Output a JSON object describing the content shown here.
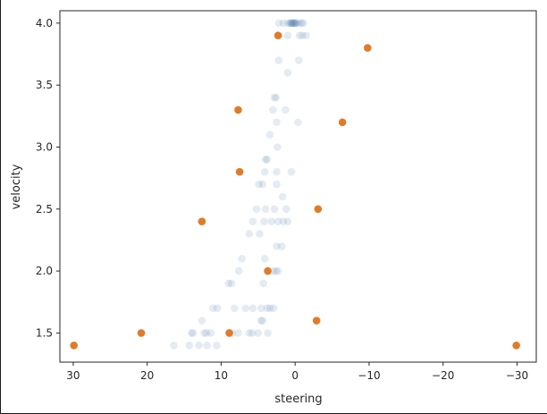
{
  "chart_data": {
    "type": "scatter",
    "xlabel": "steering",
    "ylabel": "velocity",
    "xlim": [
      31.8,
      -32.6
    ],
    "ylim": [
      1.265,
      4.1
    ],
    "x_axis_inverted": true,
    "x_ticks": [
      30,
      20,
      10,
      0,
      -10,
      -20,
      -30
    ],
    "x_tick_labels": [
      "30",
      "20",
      "10",
      "0",
      "−10",
      "−20",
      "−30"
    ],
    "y_ticks": [
      1.5,
      2.0,
      2.5,
      3.0,
      3.5,
      4.0
    ],
    "y_tick_labels": [
      "1.5",
      "2.0",
      "2.5",
      "3.0",
      "3.5",
      "4.0"
    ],
    "grid": false,
    "legend": "none",
    "series": [
      {
        "color": "#4c78b0",
        "alpha": 0.15,
        "points": [
          [
            2.2,
            4.0
          ],
          [
            1.6,
            4.0
          ],
          [
            1.0,
            4.0
          ],
          [
            0.7,
            4.0
          ],
          [
            0.5,
            4.0
          ],
          [
            0.3,
            4.0
          ],
          [
            0.1,
            4.0
          ],
          [
            -0.2,
            4.0
          ],
          [
            -0.6,
            4.0
          ],
          [
            -0.9,
            4.0
          ],
          [
            -1.1,
            4.0
          ],
          [
            0.4,
            4.0
          ],
          [
            0.2,
            4.0
          ],
          [
            -0.1,
            4.0
          ],
          [
            0.6,
            4.0
          ],
          [
            0.0,
            4.0
          ],
          [
            -0.6,
            3.9
          ],
          [
            -1.0,
            3.9
          ],
          [
            -1.5,
            3.9
          ],
          [
            1.0,
            3.9
          ],
          [
            2.2,
            3.7
          ],
          [
            -0.5,
            3.7
          ],
          [
            1.0,
            3.6
          ],
          [
            2.8,
            3.4
          ],
          [
            2.6,
            3.4
          ],
          [
            3.0,
            3.3
          ],
          [
            1.3,
            3.3
          ],
          [
            2.5,
            3.2
          ],
          [
            -0.4,
            3.2
          ],
          [
            3.4,
            3.1
          ],
          [
            2.4,
            3.0
          ],
          [
            4.0,
            2.9
          ],
          [
            3.8,
            2.9
          ],
          [
            2.5,
            2.8
          ],
          [
            0.5,
            2.8
          ],
          [
            4.1,
            2.8
          ],
          [
            4.9,
            2.7
          ],
          [
            4.4,
            2.7
          ],
          [
            2.5,
            2.7
          ],
          [
            1.7,
            2.6
          ],
          [
            5.2,
            2.5
          ],
          [
            4.0,
            2.5
          ],
          [
            2.8,
            2.5
          ],
          [
            1.2,
            2.5
          ],
          [
            5.7,
            2.4
          ],
          [
            4.2,
            2.4
          ],
          [
            3.2,
            2.4
          ],
          [
            2.3,
            2.4
          ],
          [
            1.6,
            2.4
          ],
          [
            1.0,
            2.4
          ],
          [
            6.2,
            2.3
          ],
          [
            4.8,
            2.3
          ],
          [
            2.5,
            2.2
          ],
          [
            1.8,
            2.2
          ],
          [
            7.2,
            2.1
          ],
          [
            4.1,
            2.1
          ],
          [
            7.6,
            2.0
          ],
          [
            3.0,
            2.0
          ],
          [
            2.6,
            2.0
          ],
          [
            2.3,
            2.0
          ],
          [
            9.0,
            1.9
          ],
          [
            8.6,
            1.9
          ],
          [
            4.3,
            1.9
          ],
          [
            11.1,
            1.7
          ],
          [
            10.5,
            1.7
          ],
          [
            8.2,
            1.7
          ],
          [
            6.7,
            1.7
          ],
          [
            5.7,
            1.7
          ],
          [
            4.6,
            1.7
          ],
          [
            3.8,
            1.7
          ],
          [
            3.4,
            1.7
          ],
          [
            2.9,
            1.7
          ],
          [
            12.6,
            1.6
          ],
          [
            4.6,
            1.6
          ],
          [
            4.4,
            1.6
          ],
          [
            14.0,
            1.5
          ],
          [
            13.8,
            1.5
          ],
          [
            12.3,
            1.5
          ],
          [
            12.0,
            1.5
          ],
          [
            11.4,
            1.5
          ],
          [
            8.5,
            1.5
          ],
          [
            7.7,
            1.5
          ],
          [
            6.2,
            1.5
          ],
          [
            5.8,
            1.5
          ],
          [
            5.0,
            1.5
          ],
          [
            3.7,
            1.5
          ],
          [
            16.4,
            1.4
          ],
          [
            14.3,
            1.4
          ],
          [
            13.0,
            1.4
          ],
          [
            11.9,
            1.4
          ],
          [
            10.6,
            1.4
          ]
        ]
      },
      {
        "color": "#e07b28",
        "alpha": 1.0,
        "points": [
          [
            2.3,
            3.9
          ],
          [
            -9.8,
            3.8
          ],
          [
            7.7,
            3.3
          ],
          [
            -6.4,
            3.2
          ],
          [
            7.5,
            2.8
          ],
          [
            -3.1,
            2.5
          ],
          [
            12.6,
            2.4
          ],
          [
            3.7,
            2.0
          ],
          [
            -2.9,
            1.6
          ],
          [
            20.8,
            1.5
          ],
          [
            8.9,
            1.5
          ],
          [
            29.9,
            1.4
          ],
          [
            -29.9,
            1.4
          ]
        ]
      }
    ]
  }
}
